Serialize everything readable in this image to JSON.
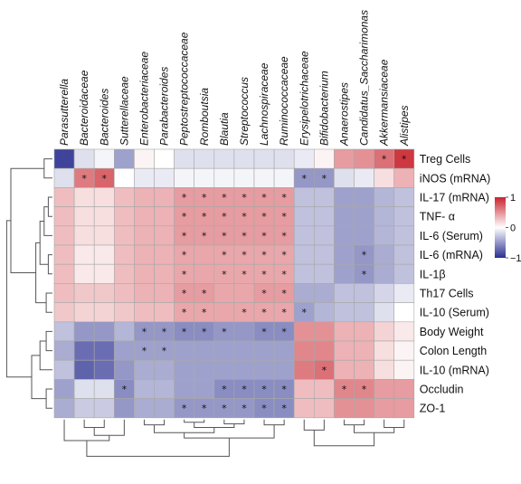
{
  "chart_data": {
    "type": "heatmap",
    "columns": [
      "Parasutterella",
      "Bacteroidaceae",
      "Bacteroides",
      "Sutterellaceae",
      "Enterobacteriaceae",
      "Parabacteroides",
      "Peptostreptococcaceae",
      "Romboutsia",
      "Blautia",
      "Streptococcus",
      "Lachnospiraceae",
      "Ruminococcaceae",
      "Erysipelotrichaceae",
      "Bifidobacterium",
      "Anaerostipes",
      "Candidatus_Saccharimonas",
      "Akkermansiaceae",
      "Alistipes"
    ],
    "rows": [
      "Treg Cells",
      "iNOS (mRNA)",
      "IL-17 (mRNA)",
      "TNF- α",
      "IL-6 (Serum)",
      "IL-6 (mRNA)",
      "IL-1β",
      "Th17 Cells",
      "IL-10 (Serum)",
      "Body Weight",
      "Colon Length",
      "IL-10 (mRNA)",
      "Occludin",
      "ZO-1"
    ],
    "values": [
      [
        -0.9,
        -0.15,
        -0.05,
        -0.45,
        0.05,
        0.0,
        -0.15,
        -0.15,
        -0.15,
        -0.15,
        -0.15,
        -0.15,
        -0.1,
        0.05,
        0.45,
        0.5,
        0.65,
        0.9
      ],
      [
        -0.15,
        0.6,
        0.7,
        0.0,
        -0.1,
        -0.1,
        -0.05,
        -0.05,
        -0.05,
        -0.05,
        -0.05,
        -0.05,
        -0.5,
        -0.5,
        -0.15,
        -0.1,
        0.15,
        0.35
      ],
      [
        0.3,
        0.15,
        0.15,
        0.3,
        0.35,
        0.35,
        0.45,
        0.45,
        0.45,
        0.45,
        0.45,
        0.45,
        -0.3,
        -0.3,
        -0.45,
        -0.45,
        -0.35,
        -0.3
      ],
      [
        0.3,
        0.15,
        0.15,
        0.3,
        0.35,
        0.35,
        0.45,
        0.45,
        0.45,
        0.45,
        0.45,
        0.45,
        -0.3,
        -0.3,
        -0.45,
        -0.45,
        -0.35,
        -0.3
      ],
      [
        0.3,
        0.15,
        0.15,
        0.3,
        0.35,
        0.35,
        0.45,
        0.45,
        0.45,
        0.45,
        0.45,
        0.45,
        -0.3,
        -0.3,
        -0.45,
        -0.45,
        -0.35,
        -0.3
      ],
      [
        0.3,
        0.1,
        0.1,
        0.3,
        0.35,
        0.35,
        0.4,
        0.4,
        0.4,
        0.4,
        0.4,
        0.4,
        -0.3,
        -0.3,
        -0.45,
        -0.5,
        -0.4,
        -0.3
      ],
      [
        0.3,
        0.1,
        0.1,
        0.3,
        0.35,
        0.35,
        0.4,
        0.4,
        0.4,
        0.4,
        0.4,
        0.4,
        -0.3,
        -0.3,
        -0.45,
        -0.5,
        -0.4,
        -0.3
      ],
      [
        0.3,
        0.25,
        0.25,
        0.3,
        0.35,
        0.35,
        0.45,
        0.45,
        0.4,
        0.4,
        0.45,
        0.45,
        -0.4,
        -0.4,
        -0.3,
        -0.3,
        -0.2,
        -0.1
      ],
      [
        0.25,
        0.2,
        0.2,
        0.25,
        0.3,
        0.3,
        0.4,
        0.4,
        0.4,
        0.4,
        0.4,
        0.4,
        -0.45,
        -0.35,
        -0.3,
        -0.3,
        -0.15,
        0.0
      ],
      [
        -0.3,
        -0.5,
        -0.5,
        -0.35,
        -0.5,
        -0.5,
        -0.55,
        -0.55,
        -0.5,
        -0.5,
        -0.55,
        -0.55,
        0.5,
        0.5,
        0.35,
        0.35,
        0.2,
        0.1
      ],
      [
        -0.4,
        -0.7,
        -0.7,
        -0.45,
        -0.45,
        -0.45,
        -0.45,
        -0.45,
        -0.45,
        -0.45,
        -0.45,
        -0.45,
        0.55,
        0.55,
        0.35,
        0.35,
        0.15,
        0.05
      ],
      [
        -0.3,
        -0.75,
        -0.7,
        -0.5,
        -0.4,
        -0.4,
        -0.45,
        -0.45,
        -0.45,
        -0.45,
        -0.45,
        -0.45,
        0.6,
        0.65,
        0.35,
        0.35,
        0.15,
        0.05
      ],
      [
        -0.45,
        -0.15,
        -0.15,
        -0.55,
        -0.35,
        -0.35,
        -0.45,
        -0.45,
        -0.55,
        -0.55,
        -0.55,
        -0.55,
        0.3,
        0.3,
        0.55,
        0.55,
        0.45,
        0.45
      ],
      [
        -0.4,
        -0.25,
        -0.25,
        -0.5,
        -0.4,
        -0.4,
        -0.5,
        -0.5,
        -0.5,
        -0.5,
        -0.55,
        -0.55,
        0.3,
        0.3,
        0.5,
        0.5,
        0.45,
        0.45
      ]
    ],
    "significance": [
      [
        0,
        0,
        0,
        0,
        0,
        0,
        0,
        0,
        0,
        0,
        0,
        0,
        0,
        0,
        0,
        0,
        1,
        1
      ],
      [
        0,
        1,
        1,
        0,
        0,
        0,
        0,
        0,
        0,
        0,
        0,
        0,
        1,
        1,
        0,
        0,
        0,
        0
      ],
      [
        0,
        0,
        0,
        0,
        0,
        0,
        1,
        1,
        1,
        1,
        1,
        1,
        0,
        0,
        0,
        0,
        0,
        0
      ],
      [
        0,
        0,
        0,
        0,
        0,
        0,
        1,
        1,
        1,
        1,
        1,
        1,
        0,
        0,
        0,
        0,
        0,
        0
      ],
      [
        0,
        0,
        0,
        0,
        0,
        0,
        1,
        1,
        1,
        1,
        1,
        1,
        0,
        0,
        0,
        0,
        0,
        0
      ],
      [
        0,
        0,
        0,
        0,
        0,
        0,
        1,
        0,
        1,
        1,
        1,
        1,
        0,
        0,
        0,
        1,
        0,
        0
      ],
      [
        0,
        0,
        0,
        0,
        0,
        0,
        1,
        0,
        1,
        1,
        1,
        1,
        0,
        0,
        0,
        1,
        0,
        0
      ],
      [
        0,
        0,
        0,
        0,
        0,
        0,
        1,
        1,
        0,
        0,
        1,
        1,
        0,
        0,
        0,
        0,
        0,
        0
      ],
      [
        0,
        0,
        0,
        0,
        0,
        0,
        1,
        1,
        0,
        1,
        1,
        1,
        1,
        0,
        0,
        0,
        0,
        0
      ],
      [
        0,
        0,
        0,
        0,
        1,
        1,
        1,
        1,
        1,
        0,
        1,
        1,
        0,
        0,
        0,
        0,
        0,
        0
      ],
      [
        0,
        0,
        0,
        0,
        1,
        1,
        0,
        0,
        0,
        0,
        0,
        0,
        0,
        0,
        0,
        0,
        0,
        0
      ],
      [
        0,
        0,
        0,
        0,
        0,
        0,
        0,
        0,
        0,
        0,
        0,
        0,
        0,
        1,
        0,
        0,
        0,
        0
      ],
      [
        0,
        0,
        0,
        1,
        0,
        0,
        0,
        0,
        1,
        1,
        1,
        1,
        0,
        0,
        1,
        1,
        0,
        0
      ],
      [
        0,
        0,
        0,
        0,
        0,
        0,
        1,
        1,
        1,
        1,
        1,
        1,
        0,
        0,
        0,
        0,
        0,
        0
      ]
    ],
    "star_symbol": "*",
    "color_scale": {
      "min": -1,
      "max": 1,
      "low": "#2a2f8f",
      "mid": "#ffffff",
      "high": "#c8232c"
    },
    "legend": {
      "ticks": [
        1,
        0,
        -1
      ],
      "tick_labels": [
        "1",
        "0",
        "−1"
      ],
      "position": "right"
    },
    "grid": true
  }
}
